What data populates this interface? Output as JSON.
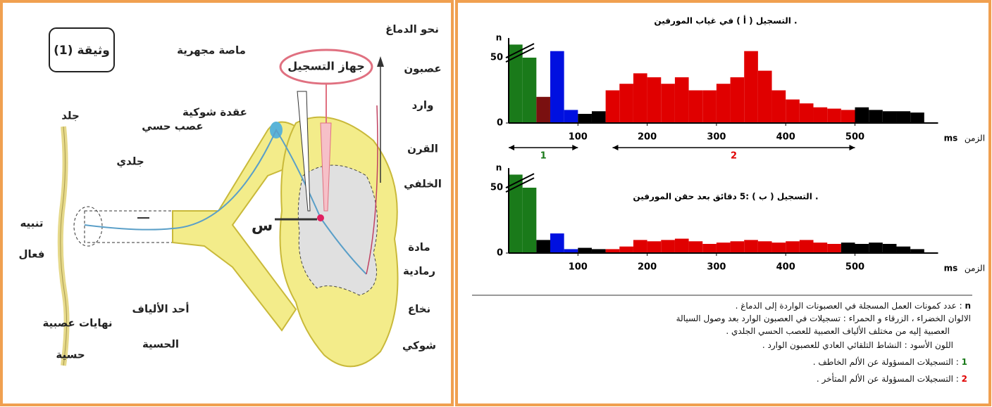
{
  "diagram": {
    "doc_title": "وثيقة (1)",
    "skin": "جلد",
    "nerve": [
      "عصب حسي",
      "جلدي"
    ],
    "ganglion": "عقدة شوكية",
    "pipette": "ماصة مجهرية",
    "device": "جهاز التسجيل",
    "to_brain": "نحو الدماغ",
    "neuron": [
      "عصبون",
      "وارد"
    ],
    "horn": [
      "القرن",
      "الخلفي"
    ],
    "point": "س",
    "grey": [
      "مادة",
      "رمادية"
    ],
    "cord": [
      "نخاع",
      "شوكي"
    ],
    "stimulus": [
      "تنبيه",
      "فعال"
    ],
    "endings": [
      "نهايات عصبية",
      "حسية"
    ],
    "fibers": [
      "أحد الألياف",
      "الحسية"
    ]
  },
  "chart_data": [
    {
      "type": "histogram",
      "title": "التسجيل ( أ ) في غياب المورفين .",
      "y_label": "n",
      "x_label": "ms",
      "x_label_name": "الزمن",
      "bins": [
        0,
        20,
        40,
        60,
        80,
        100,
        120,
        140,
        160,
        180,
        200,
        220,
        240,
        260,
        280,
        300,
        320,
        340,
        360,
        380,
        400,
        420,
        440,
        460,
        480,
        500,
        520,
        540,
        560,
        580,
        600
      ],
      "values": [
        60,
        50,
        20,
        55,
        10,
        7,
        9,
        25,
        30,
        38,
        35,
        30,
        35,
        25,
        25,
        30,
        35,
        55,
        40,
        25,
        18,
        15,
        12,
        11,
        10,
        12,
        10,
        9,
        9,
        8
      ],
      "colors": [
        "#1a7a1a",
        "#1a7a1a",
        "#7a1010",
        "#0010e0",
        "#0010e0",
        "#000",
        "#000",
        "#e00000",
        "#e00000",
        "#e00000",
        "#e00000",
        "#e00000",
        "#e00000",
        "#e00000",
        "#e00000",
        "#e00000",
        "#e00000",
        "#e00000",
        "#e00000",
        "#e00000",
        "#e00000",
        "#e00000",
        "#e00000",
        "#e00000",
        "#e00000",
        "#000",
        "#000",
        "#000",
        "#000",
        "#000"
      ],
      "xlim": [
        0,
        620
      ],
      "ylim": [
        0,
        65
      ],
      "xticks": [
        100,
        200,
        300,
        400,
        500
      ],
      "yticks": [
        0,
        50
      ],
      "annotations": [
        {
          "text": "1",
          "range": [
            0,
            100
          ],
          "color": "#1a7a1a"
        },
        {
          "text": "2",
          "range": [
            150,
            500
          ],
          "color": "#e00000"
        }
      ]
    },
    {
      "type": "histogram",
      "title": "التسجيل ( ب ) :5 دقائق بعد حقن المورفين .",
      "y_label": "n",
      "x_label": "ms",
      "x_label_name": "الزمن",
      "bins": [
        0,
        20,
        40,
        60,
        80,
        100,
        120,
        140,
        160,
        180,
        200,
        220,
        240,
        260,
        280,
        300,
        320,
        340,
        360,
        380,
        400,
        420,
        440,
        460,
        480,
        500,
        520,
        540,
        560,
        580,
        600
      ],
      "values": [
        60,
        50,
        10,
        15,
        3,
        4,
        3,
        3,
        5,
        10,
        9,
        10,
        11,
        9,
        7,
        8,
        9,
        10,
        9,
        8,
        9,
        10,
        8,
        7,
        8,
        7,
        8,
        7,
        5,
        3
      ],
      "colors": [
        "#1a7a1a",
        "#1a7a1a",
        "#000",
        "#0010e0",
        "#0010e0",
        "#000",
        "#000",
        "#e00000",
        "#e00000",
        "#e00000",
        "#e00000",
        "#e00000",
        "#e00000",
        "#e00000",
        "#e00000",
        "#e00000",
        "#e00000",
        "#e00000",
        "#e00000",
        "#e00000",
        "#e00000",
        "#e00000",
        "#e00000",
        "#e00000",
        "#000",
        "#000",
        "#000",
        "#000",
        "#000",
        "#000"
      ],
      "xlim": [
        0,
        620
      ],
      "ylim": [
        0,
        65
      ],
      "xticks": [
        100,
        200,
        300,
        400,
        500
      ],
      "yticks": [
        0,
        50
      ]
    }
  ],
  "legend": {
    "n_key": "n",
    "n_text": ": عدد كمونات العمل المسجلة في العصبونات الواردة إلى الدماغ .",
    "colors_text": [
      "الالوان الخضراء ، الزرقاء و الحمراء : تسجيلات في العصبون الوارد بعد وصول السيالة",
      "العصبية إليه من مختلف الألياف العصبية للعصب الحسي الجلدي ."
    ],
    "black_text": "اللون الأسود : النشاط التلقائي العادي للعصبون الوارد .",
    "items": [
      {
        "key": "1",
        "text": ": التسجيلات المسؤولة عن الألم الخاطف .",
        "color": "#1a7a1a"
      },
      {
        "key": "2",
        "text": ": التسجيلات المسؤولة عن الألم المتأخر .",
        "color": "#e00000"
      }
    ]
  }
}
